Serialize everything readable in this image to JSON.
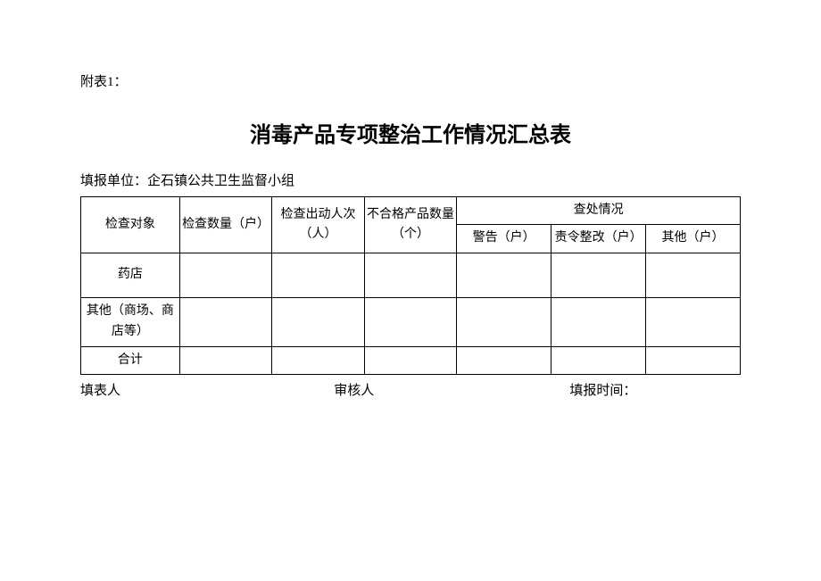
{
  "attachment_label": "附表1：",
  "title": "消毒产品专项整治工作情况汇总表",
  "report_unit_label": "填报单位：",
  "report_unit_value": "企石镇公共卫生监督小组",
  "table": {
    "headers": {
      "inspect_object": "检查对象",
      "inspect_count": "检查数量（户）",
      "personnel": "检查出动人次（人）",
      "unqualified": "不合格产品数量（个）",
      "investigation_group": "查处情况",
      "warning": "警告（户）",
      "rectify": "责令整改（户）",
      "other": "其他（户）"
    },
    "rows": [
      {
        "label": "药店",
        "inspect_count": "",
        "personnel": "",
        "unqualified": "",
        "warning": "",
        "rectify": "",
        "other": ""
      },
      {
        "label": "其他（商场、商店等）",
        "inspect_count": "",
        "personnel": "",
        "unqualified": "",
        "warning": "",
        "rectify": "",
        "other": ""
      },
      {
        "label": "合计",
        "inspect_count": "",
        "personnel": "",
        "unqualified": "",
        "warning": "",
        "rectify": "",
        "other": ""
      }
    ]
  },
  "footer": {
    "filler": "填表人",
    "reviewer": "审核人",
    "report_time": "填报时间："
  },
  "styling": {
    "background_color": "#ffffff",
    "text_color": "#000000",
    "border_color": "#000000",
    "title_fontsize": 24,
    "body_fontsize": 15,
    "table_fontsize": 14,
    "font_family_body": "SimSun",
    "font_family_title": "SimHei"
  }
}
